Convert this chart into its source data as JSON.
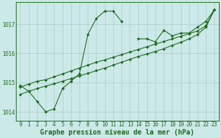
{
  "title": "Graphe pression niveau de la mer (hPa)",
  "bg_color": "#cce8e8",
  "grid_color": "#aacccc",
  "line_color": "#1a6b1a",
  "hours": [
    0,
    1,
    2,
    3,
    4,
    5,
    6,
    7,
    8,
    9,
    10,
    11,
    12,
    13,
    14,
    15,
    16,
    17,
    18,
    19,
    20,
    21,
    22,
    23
  ],
  "series1": [
    1014.9,
    1014.7,
    1014.35,
    1014.0,
    1014.1,
    1014.8,
    1015.05,
    1015.3,
    1016.65,
    1017.2,
    1017.45,
    1017.45,
    1017.1,
    null,
    1016.5,
    1016.5,
    1016.4,
    1016.8,
    1016.6,
    1016.7,
    1016.7,
    1016.9,
    1017.1,
    1017.5
  ],
  "series2": [
    1014.85,
    1014.95,
    1015.05,
    1015.1,
    1015.2,
    1015.3,
    1015.4,
    1015.5,
    1015.6,
    1015.7,
    1015.78,
    1015.87,
    1015.96,
    1016.05,
    1016.14,
    1016.23,
    1016.32,
    1016.41,
    1016.5,
    1016.59,
    1016.68,
    1016.77,
    1016.95,
    1017.5
  ],
  "series3": [
    1014.6,
    1014.7,
    1014.8,
    1014.88,
    1014.96,
    1015.05,
    1015.14,
    1015.23,
    1015.32,
    1015.41,
    1015.5,
    1015.6,
    1015.7,
    1015.8,
    1015.9,
    1015.98,
    1016.07,
    1016.16,
    1016.28,
    1016.38,
    1016.5,
    1016.65,
    1016.9,
    1017.5
  ],
  "ylim": [
    1013.7,
    1017.75
  ],
  "yticks": [
    1014,
    1015,
    1016,
    1017
  ],
  "figsize": [
    3.2,
    2.0
  ],
  "dpi": 100,
  "title_fontsize": 7,
  "tick_fontsize": 5.5
}
